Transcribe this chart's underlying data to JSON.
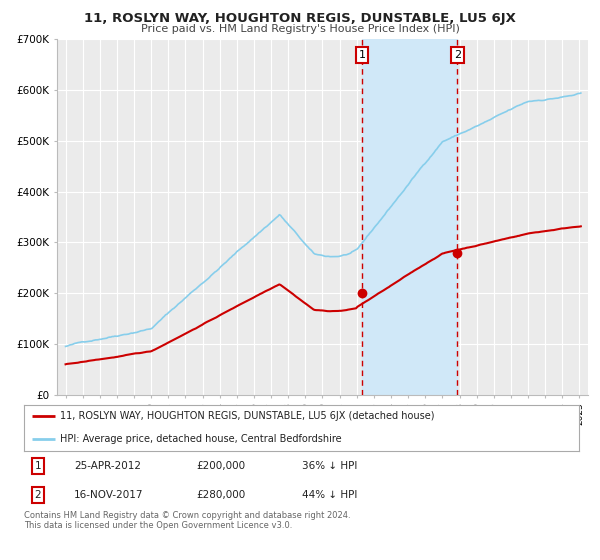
{
  "title": "11, ROSLYN WAY, HOUGHTON REGIS, DUNSTABLE, LU5 6JX",
  "subtitle": "Price paid vs. HM Land Registry's House Price Index (HPI)",
  "red_label": "11, ROSLYN WAY, HOUGHTON REGIS, DUNSTABLE, LU5 6JX (detached house)",
  "blue_label": "HPI: Average price, detached house, Central Bedfordshire",
  "annotation1_date": "25-APR-2012",
  "annotation1_price": "£200,000",
  "annotation1_hpi": "36% ↓ HPI",
  "annotation2_date": "16-NOV-2017",
  "annotation2_price": "£280,000",
  "annotation2_hpi": "44% ↓ HPI",
  "footer1": "Contains HM Land Registry data © Crown copyright and database right 2024.",
  "footer2": "This data is licensed under the Open Government Licence v3.0.",
  "vline1_x": 2012.31,
  "vline2_x": 2017.88,
  "dot1_x": 2012.31,
  "dot1_y": 200000,
  "dot2_x": 2017.88,
  "dot2_y": 280000,
  "ylim": [
    0,
    700000
  ],
  "xlim": [
    1994.5,
    2025.5
  ],
  "background_color": "#ffffff",
  "plot_bg_color": "#ebebeb",
  "grid_color": "#ffffff",
  "red_color": "#cc0000",
  "blue_color": "#87CEEB",
  "vline_color": "#cc0000",
  "shade_color": "#d0e8f8",
  "yticks": [
    0,
    100000,
    200000,
    300000,
    400000,
    500000,
    600000,
    700000
  ],
  "ytick_labels": [
    "£0",
    "£100K",
    "£200K",
    "£300K",
    "£400K",
    "£500K",
    "£600K",
    "£700K"
  ]
}
